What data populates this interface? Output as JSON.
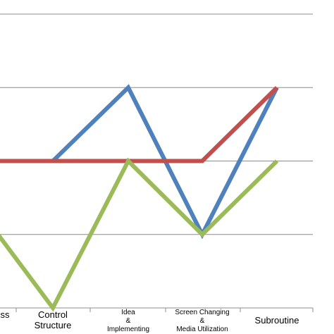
{
  "chart_data": {
    "type": "line",
    "categories": [
      [
        "ss"
      ],
      [
        "Control",
        "Structure"
      ],
      [
        "Idea",
        "&",
        "Implementing"
      ],
      [
        "Screen Changing",
        "&",
        "Media Utilization"
      ],
      [
        "Subroutine"
      ]
    ],
    "series": [
      {
        "color": "#4f81bd",
        "values": [
          null,
          2,
          3,
          1,
          3
        ]
      },
      {
        "color": "#c0504d",
        "values": [
          2,
          2,
          2,
          2,
          3
        ]
      },
      {
        "color": "#9bbb59",
        "values": [
          1.35,
          0,
          2,
          1,
          2
        ]
      }
    ],
    "ylim": [
      0,
      4
    ],
    "grid": true,
    "legend": "none"
  }
}
